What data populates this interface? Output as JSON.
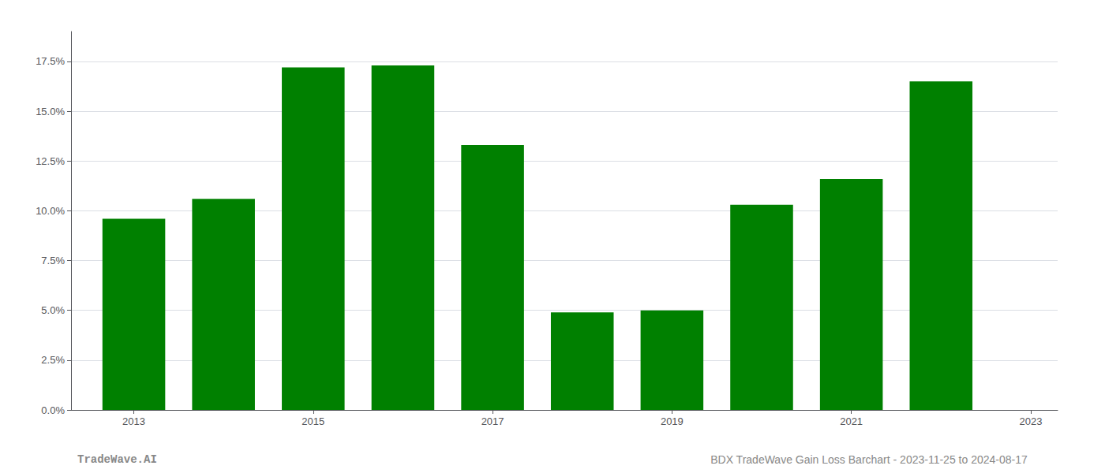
{
  "chart_data": {
    "type": "bar",
    "x": [
      2013,
      2014,
      2015,
      2016,
      2017,
      2018,
      2019,
      2020,
      2021,
      2022
    ],
    "values": [
      0.096,
      0.106,
      0.172,
      0.173,
      0.133,
      0.049,
      0.05,
      0.103,
      0.116,
      0.165
    ],
    "color": "#008000",
    "xlim": [
      2012.3,
      2023.3
    ],
    "xticks": [
      2013,
      2015,
      2017,
      2019,
      2021,
      2023
    ],
    "ylim": [
      0,
      0.19
    ],
    "yticks": [
      {
        "value": 0.0,
        "label": "0.0%"
      },
      {
        "value": 0.025,
        "label": "2.5%"
      },
      {
        "value": 0.05,
        "label": "5.0%"
      },
      {
        "value": 0.075,
        "label": "7.5%"
      },
      {
        "value": 0.1,
        "label": "10.0%"
      },
      {
        "value": 0.125,
        "label": "12.5%"
      },
      {
        "value": 0.15,
        "label": "15.0%"
      },
      {
        "value": 0.175,
        "label": "17.5%"
      }
    ],
    "grid": true,
    "annotations": [
      "TradeWave.AI",
      "BDX TradeWave Gain Loss Barchart - 2023-11-25 to 2024-08-17"
    ]
  }
}
